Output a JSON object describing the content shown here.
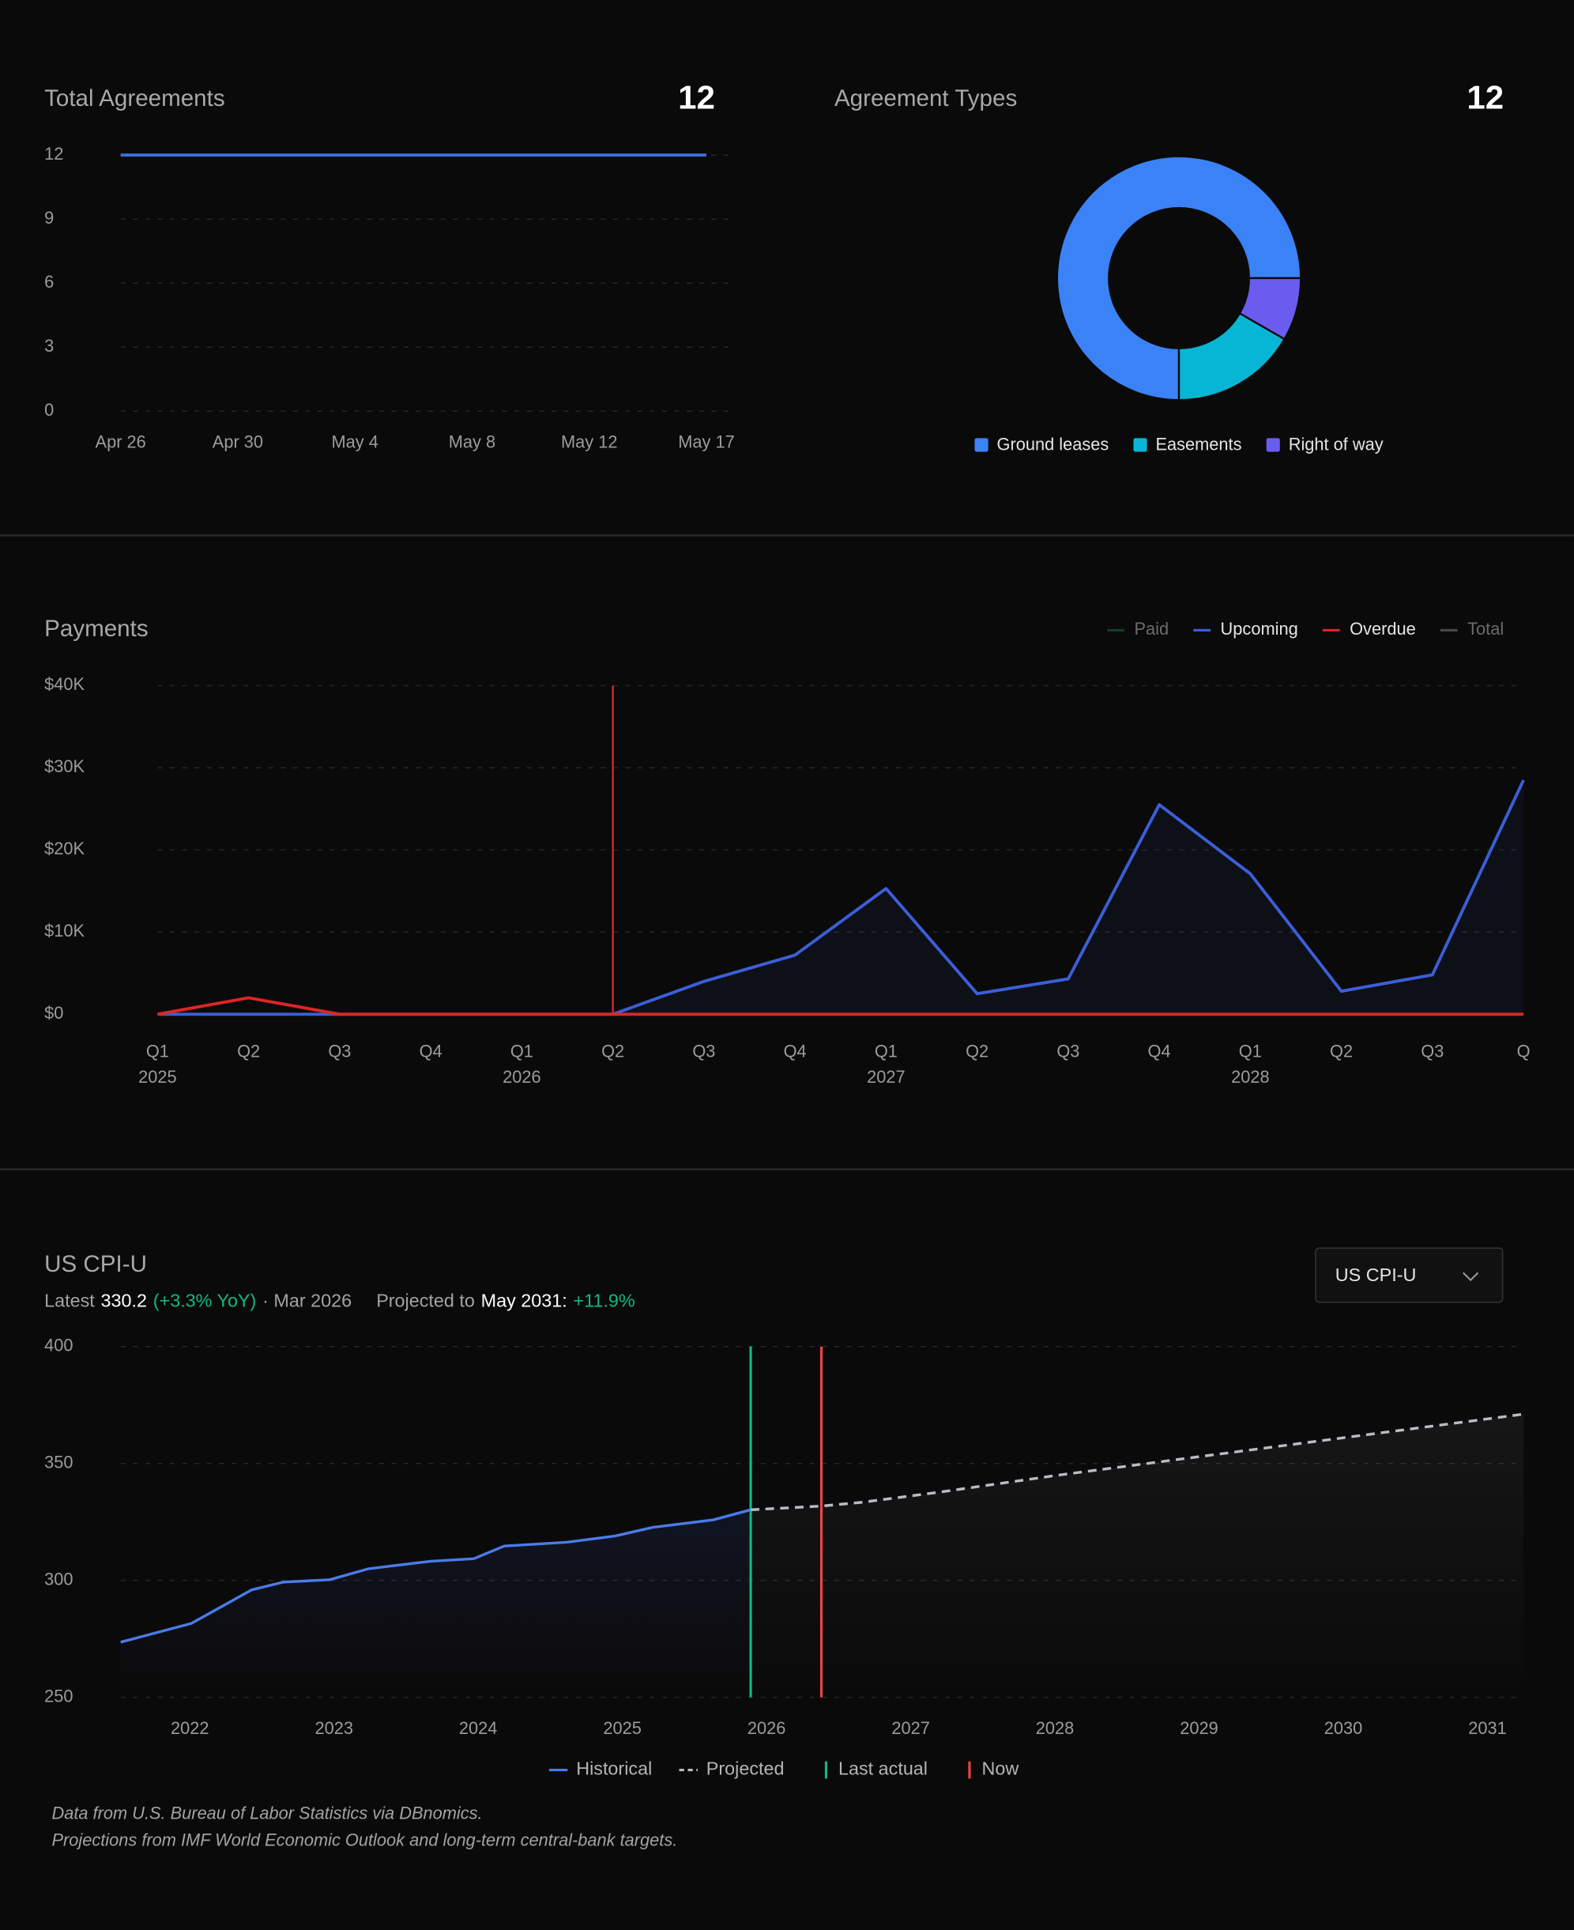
{
  "chart_data": [
    {
      "type": "line",
      "title": "Total Agreements",
      "total": 12,
      "categories": [
        "Apr 26",
        "Apr 30",
        "May 4",
        "May 8",
        "May 12",
        "May 17"
      ],
      "values": [
        12,
        12,
        12,
        12,
        12,
        12
      ],
      "color": "#3b6fe6",
      "ylim": [
        0,
        12
      ],
      "yticks": [
        0,
        3,
        6,
        9,
        12
      ],
      "grid": true
    },
    {
      "type": "donut",
      "title": "Agreement Types",
      "total": 12,
      "categories": [
        "Ground leases",
        "Easements",
        "Right of way"
      ],
      "values": [
        9,
        2,
        1
      ],
      "colors": [
        "#3b82f6",
        "#06b6d4",
        "#6b5cf0"
      ],
      "legend": "bottom"
    },
    {
      "type": "line",
      "title": "Payments",
      "categories": [
        "Q1",
        "Q2",
        "Q3",
        "Q4",
        "Q1",
        "Q2",
        "Q3",
        "Q4",
        "Q1",
        "Q2",
        "Q3",
        "Q4",
        "Q1",
        "Q2",
        "Q3",
        "Q"
      ],
      "category_years": [
        "2025",
        null,
        null,
        null,
        "2026",
        null,
        null,
        null,
        "2027",
        null,
        null,
        null,
        "2028",
        null,
        null,
        null
      ],
      "series": [
        {
          "name": "Paid",
          "color": "#166534",
          "hidden": true
        },
        {
          "name": "Upcoming",
          "color": "#3b5fd9",
          "area": true,
          "values": [
            0,
            0,
            0,
            0,
            0,
            0,
            4000,
            7200,
            15300,
            2500,
            4300,
            25500,
            17100,
            2800,
            4800,
            28500
          ]
        },
        {
          "name": "Overdue",
          "color": "#dc2626",
          "values": [
            0,
            2000,
            0,
            0,
            0,
            0,
            0,
            0,
            0,
            0,
            0,
            0,
            0,
            0,
            0,
            0
          ]
        },
        {
          "name": "Total",
          "color": "#6b7280",
          "hidden": true
        }
      ],
      "ylim": [
        0,
        40000
      ],
      "yticks": [
        {
          "value": 0,
          "label": "$0"
        },
        {
          "value": 10000,
          "label": "$10K"
        },
        {
          "value": 20000,
          "label": "$20K"
        },
        {
          "value": 30000,
          "label": "$30K"
        },
        {
          "value": 40000,
          "label": "$40K"
        }
      ],
      "grid": true,
      "now_index": 5,
      "now_color": "#dc2626",
      "legend": "top-right"
    },
    {
      "type": "timeseries",
      "title": "US CPI-U",
      "selector": "US CPI-U",
      "latest_label": "Latest",
      "latest_value": "330.2",
      "latest_yoy": "(+3.3% YoY)",
      "latest_date": "· Mar 2026",
      "projected_label": "Projected to",
      "projected_date": "May 2031:",
      "projected_change": "+11.9%",
      "xlim": [
        2021.52,
        2031.25
      ],
      "xticks": [
        2022,
        2023,
        2024,
        2025,
        2026,
        2027,
        2028,
        2029,
        2030,
        2031
      ],
      "ylim": [
        250,
        400
      ],
      "yticks": [
        250,
        300,
        350,
        400
      ],
      "grid": true,
      "series": [
        {
          "name": "Historical",
          "color": "#4a7be8",
          "x": [
            2021.52,
            2022.01,
            2022.43,
            2022.65,
            2022.97,
            2023.24,
            2023.67,
            2023.97,
            2024.18,
            2024.61,
            2024.95,
            2025.21,
            2025.63,
            2025.89
          ],
          "values": [
            273.6,
            281.6,
            296,
            299.3,
            300.3,
            305,
            308.2,
            309.3,
            314.7,
            316.3,
            319,
            322.7,
            325.9,
            330.2
          ]
        },
        {
          "name": "Projected",
          "color": "#b8bcc4",
          "dashed": true,
          "x": [
            2025.89,
            2026.38,
            2026.66,
            2027.17,
            2028.02,
            2031.25
          ],
          "values": [
            330.2,
            331.8,
            333.4,
            337.5,
            345,
            371.1
          ]
        }
      ],
      "markers": [
        {
          "name": "Last actual",
          "x": 2025.89,
          "color": "#10b981"
        },
        {
          "name": "Now",
          "x": 2026.38,
          "color": "#ef4444"
        }
      ],
      "notes": [
        "Data from U.S. Bureau of Labor Statistics via DBnomics.",
        "Projections from IMF World Economic Outlook and long-term central-bank targets."
      ]
    }
  ]
}
